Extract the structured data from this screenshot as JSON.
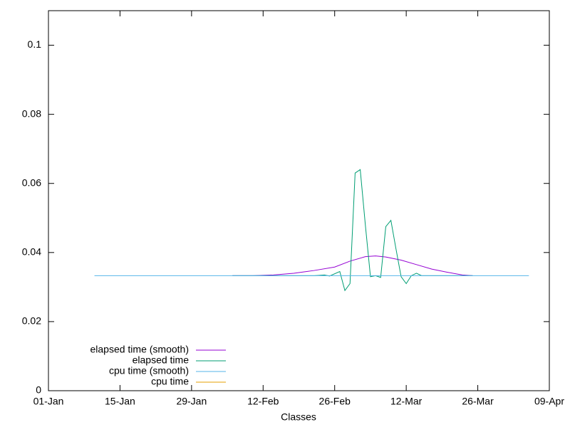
{
  "chart_data": {
    "type": "line",
    "x_label": "Classes",
    "xlim": [
      0,
      98
    ],
    "ylim": [
      0,
      0.11
    ],
    "xticks": [
      {
        "value": 0,
        "label": "01-Jan"
      },
      {
        "value": 14,
        "label": "15-Jan"
      },
      {
        "value": 28,
        "label": "29-Jan"
      },
      {
        "value": 42,
        "label": "12-Feb"
      },
      {
        "value": 56,
        "label": "26-Feb"
      },
      {
        "value": 70,
        "label": "12-Mar"
      },
      {
        "value": 84,
        "label": "26-Mar"
      },
      {
        "value": 98,
        "label": "09-Apr"
      }
    ],
    "yticks": [
      0,
      0.02,
      0.04,
      0.06,
      0.08,
      0.1
    ],
    "legend": "bottom left",
    "series": [
      {
        "name": "elapsed time (smooth)",
        "color": "#9400d3",
        "x": [
          36,
          40,
          44,
          48,
          52,
          56,
          59,
          62,
          64,
          66,
          69,
          72,
          75,
          78,
          81,
          83
        ],
        "values": [
          0.0333,
          0.0333,
          0.0335,
          0.034,
          0.0348,
          0.0358,
          0.0375,
          0.0388,
          0.039,
          0.0387,
          0.0378,
          0.0365,
          0.0352,
          0.0343,
          0.0335,
          0.0333
        ]
      },
      {
        "name": "elapsed time",
        "color": "#009e73",
        "x": [
          36,
          44,
          52,
          54,
          55,
          57,
          58,
          59,
          60,
          61,
          62,
          63,
          64,
          65,
          66,
          67,
          68,
          69,
          70,
          71,
          72,
          73,
          83
        ],
        "values": [
          0.0333,
          0.0333,
          0.0333,
          0.0335,
          0.0332,
          0.0345,
          0.029,
          0.031,
          0.063,
          0.064,
          0.048,
          0.033,
          0.0333,
          0.0328,
          0.0475,
          0.0493,
          0.041,
          0.033,
          0.031,
          0.0333,
          0.034,
          0.0333,
          0.0333
        ]
      },
      {
        "name": "cpu time (smooth)",
        "color": "#56b4e9",
        "x": [
          9,
          36,
          52,
          83,
          94
        ],
        "values": [
          0.0333,
          0.0333,
          0.0333,
          0.0333,
          0.0333
        ]
      },
      {
        "name": "cpu time",
        "color": "#e69f00",
        "x": [],
        "values": []
      }
    ]
  }
}
